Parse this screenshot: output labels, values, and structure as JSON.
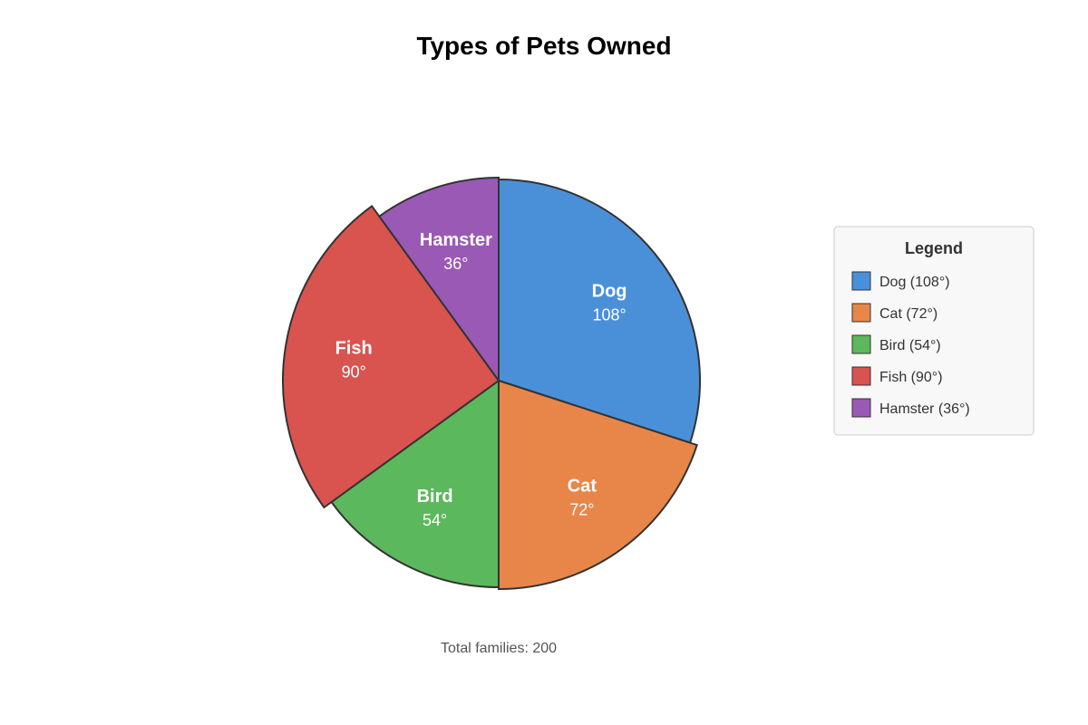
{
  "chart_data": {
    "type": "pie",
    "title": "Types of Pets Owned",
    "unit": "°",
    "slices": [
      {
        "label": "Dog",
        "value_text": "108°",
        "legend": "Dog (108°)",
        "value": 108,
        "color": "#4a90d9"
      },
      {
        "label": "Cat",
        "value_text": "72°",
        "legend": "Cat (72°)",
        "value": 72,
        "color": "#e8864a"
      },
      {
        "label": "Bird",
        "value_text": "54°",
        "legend": "Bird (54°)",
        "value": 54,
        "color": "#5cb85c"
      },
      {
        "label": "Fish",
        "value_text": "90°",
        "legend": "Fish (90°)",
        "value": 90,
        "color": "#d9534f"
      },
      {
        "label": "Hamster",
        "value_text": "36°",
        "legend": "Hamster (36°)",
        "value": 36,
        "color": "#9b59b6"
      }
    ],
    "legend_title": "Legend",
    "legend_position": "right",
    "footnote": "Total families: 200"
  }
}
